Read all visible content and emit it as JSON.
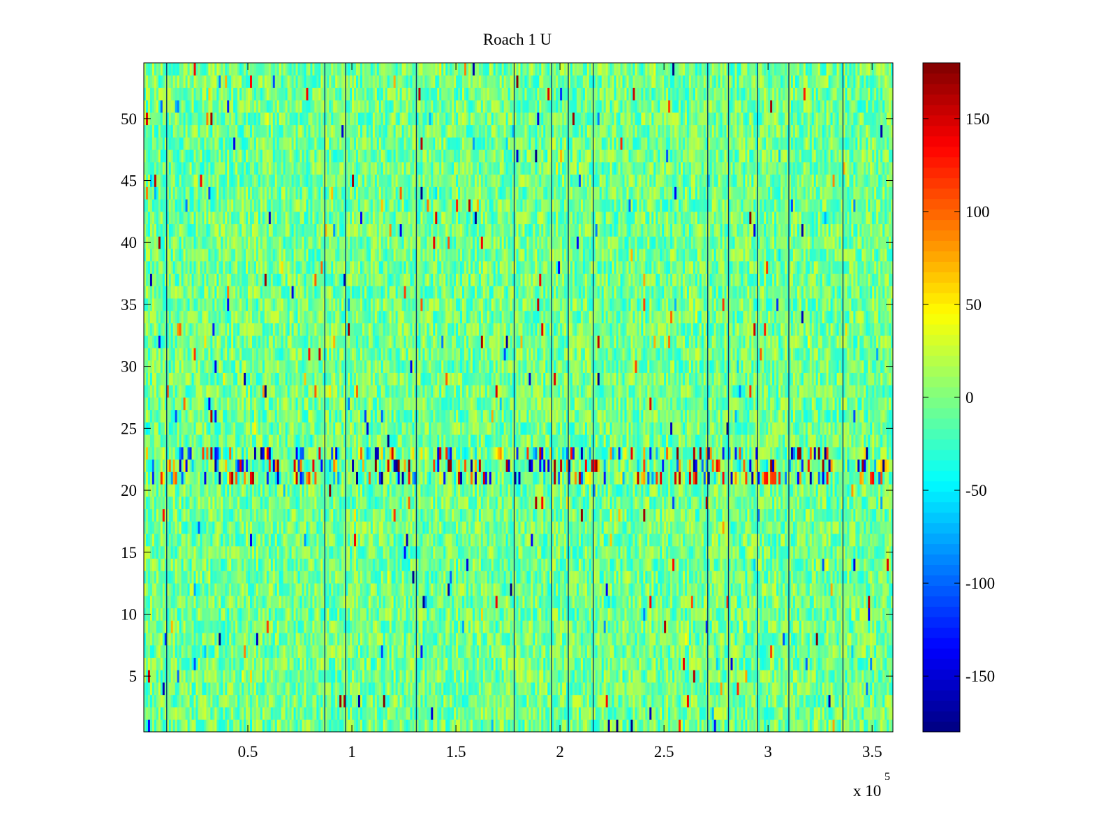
{
  "chart_data": {
    "type": "heatmap",
    "title": "Roach 1 U",
    "xlabel": "",
    "ylabel": "",
    "x_exponent_label": "x 10",
    "x_exponent": "5",
    "xlim": [
      0,
      360000
    ],
    "ylim": [
      0.5,
      54.5
    ],
    "x_ticks": [
      {
        "value": 50000,
        "label": "0.5"
      },
      {
        "value": 100000,
        "label": "1"
      },
      {
        "value": 150000,
        "label": "1.5"
      },
      {
        "value": 200000,
        "label": "2"
      },
      {
        "value": 250000,
        "label": "2.5"
      },
      {
        "value": 300000,
        "label": "3"
      },
      {
        "value": 350000,
        "label": "3.5"
      }
    ],
    "y_ticks": [
      {
        "value": 5,
        "label": "5"
      },
      {
        "value": 10,
        "label": "10"
      },
      {
        "value": 15,
        "label": "15"
      },
      {
        "value": 20,
        "label": "20"
      },
      {
        "value": 25,
        "label": "25"
      },
      {
        "value": 30,
        "label": "30"
      },
      {
        "value": 35,
        "label": "35"
      },
      {
        "value": 40,
        "label": "40"
      },
      {
        "value": 45,
        "label": "45"
      },
      {
        "value": 50,
        "label": "50"
      }
    ],
    "colorbar": {
      "colormap": "jet",
      "clim": [
        -180,
        180
      ],
      "ticks": [
        {
          "value": 150,
          "label": "150"
        },
        {
          "value": 100,
          "label": "100"
        },
        {
          "value": 50,
          "label": "50"
        },
        {
          "value": 0,
          "label": "0"
        },
        {
          "value": -50,
          "label": "-50"
        },
        {
          "value": -100,
          "label": "-100"
        },
        {
          "value": -150,
          "label": "-150"
        }
      ]
    },
    "rows": 54,
    "typical_range": [
      -40,
      30
    ],
    "outlier_range": [
      -180,
      180
    ],
    "dark_vertical_line_x": [
      11000,
      87000,
      97000,
      131000,
      178000,
      196000,
      204000,
      216000,
      271000,
      281000,
      295000,
      310000,
      336000
    ],
    "high_variance_rows": [
      21,
      22,
      23
    ]
  }
}
